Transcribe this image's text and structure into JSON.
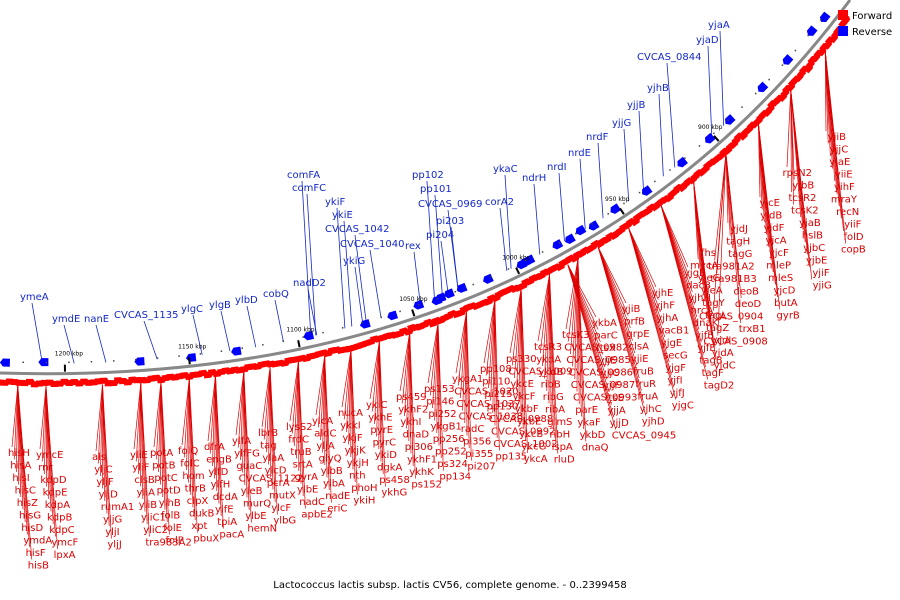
{
  "caption": "Lactococcus lactis subsp. lactis CV56, complete genome. - 0..2399458",
  "legend": [
    {
      "label": "Forward",
      "color": "#ff0000"
    },
    {
      "label": "Reverse",
      "color": "#0000ff"
    }
  ],
  "colors": {
    "forward": "#ff0000",
    "reverse": "#0000ff",
    "label_forward": "#dd0000",
    "label_reverse": "#1428c8",
    "axis": "#888888"
  },
  "tick_labels": [
    "1200 kbp",
    "1150 kbp",
    "1100 kbp",
    "1050 kbp",
    "1000 kbp",
    "950 kbp",
    "900 kbp"
  ],
  "reverse_labels": [
    "ymeA",
    "ymdE",
    "nanE",
    "CVCAS_1135",
    "ylgC",
    "ylgB",
    "ylbD",
    "cobQ",
    "nadD2",
    "ykiF",
    "comFC",
    "comFA",
    "ykiE",
    "CVCAS_1042",
    "CVCAS_1040",
    "ykiG",
    "rex",
    "pi204",
    "pi203",
    "CVCAS_0969",
    "pp101",
    "pp102",
    "corA2",
    "ndrH",
    "ykaC",
    "nrdI",
    "nrdE",
    "nrdF",
    "yjjG",
    "yjjB",
    "yjhB",
    "CVCAS_0844",
    "yjaD",
    "yjaA"
  ],
  "forward_labels": [
    "hisH",
    "hisA",
    "hisI",
    "hisC",
    "hisZ",
    "hisG",
    "hisD",
    "ymdA",
    "hisF",
    "hisB",
    "ymdC",
    "ymcE",
    "rnr",
    "kdpD",
    "kdpE",
    "kdpA",
    "kdpB",
    "kdpC",
    "ymcF",
    "lpxA",
    "als",
    "yljC",
    "yljF",
    "yljD",
    "rumA1",
    "yljG",
    "yljI",
    "yljJ",
    "yliE",
    "yliF",
    "clsB",
    "yliA",
    "yliB",
    "yliC1",
    "yliC2",
    "tra983A2",
    "potA",
    "potB",
    "potC",
    "potD",
    "ylhB",
    "folB",
    "folE",
    "folP",
    "folQ",
    "folC",
    "hom",
    "thrB",
    "clpX",
    "dukB",
    "xpt",
    "pbuX",
    "dfrA",
    "engB",
    "ylfD",
    "ylfH",
    "dcdA",
    "ylfE",
    "tpiA",
    "pacA",
    "ylfA",
    "ylfFG",
    "guaC",
    "CVCAS_1122",
    "yleB",
    "murQ",
    "ylbE",
    "hemN",
    "lbrB",
    "tag",
    "ylaA",
    "ylcD",
    "pcrA",
    "mutX",
    "ylcF",
    "ylbG",
    "lysS2",
    "frdC",
    "truB",
    "srtA",
    "gyrA",
    "ylbE",
    "nadC",
    "apbE2",
    "ylcA",
    "aldC",
    "yljA",
    "glyQ",
    "ylbB",
    "ylbA",
    "nadE",
    "eriC",
    "nucA",
    "ykkI",
    "ykjF",
    "ykjK",
    "ykjH",
    "nth",
    "phoH",
    "ykiH",
    "ykiC",
    "ykhE",
    "pyrE",
    "pyrC",
    "ykiD",
    "dgkA",
    "ps458",
    "ykhG",
    "ps459",
    "ykhF2",
    "ykhI",
    "dnaD",
    "pi306",
    "ykhF1",
    "ykhK",
    "ps152",
    "ps153",
    "pi146",
    "pi252",
    "ykgB1",
    "pp256",
    "pp252",
    "ps324",
    "pp134",
    "ykgA1",
    "CVCAS_1020",
    "CVCAS_1037",
    "CVCAS_1038",
    "radC",
    "pi356",
    "pi355",
    "pi207",
    "pp108",
    "pi110",
    "pi215",
    "pp130",
    "CVCAS_0988",
    "CVCAS_0992",
    "CVCAS_1002",
    "pp135",
    "ps330",
    "CVCAS_1009",
    "ykcE",
    "ykcF",
    "ykbF",
    "ykbE",
    "ykcB",
    "ykcG",
    "ykcA",
    "tcsR3",
    "ykdA",
    "ykdB",
    "ribB",
    "ribG",
    "ribA",
    "glmS",
    "ribH",
    "lspA",
    "rluD",
    "tcsK3",
    "CVCAS_0982",
    "CVCAS_0985",
    "CVCAS_0986",
    "CVCAS_0987",
    "CVCAS_0993",
    "parE",
    "ykaF",
    "ykbD",
    "dnaQ",
    "ykbA",
    "parC",
    "ftsX",
    "yjjE",
    "yjjC",
    "yjjF",
    "ftsE",
    "yjjA",
    "yjjD",
    "CVCAS_0945",
    "yjiB",
    "prfB",
    "grpE",
    "clsA",
    "yjiE",
    "fruB",
    "fruR",
    "fruA",
    "yjhC",
    "yjhD",
    "yjhE",
    "yjhF",
    "yjhA",
    "vacB1",
    "yjgE",
    "secG",
    "yjgF",
    "yjfI",
    "yjfJ",
    "yjgC",
    "yjgB",
    "dacB",
    "yjhH",
    "hrcA",
    "dnaK",
    "yjfB",
    "yjfE",
    "tagB",
    "tagF",
    "tagD2",
    "fhs",
    "mycA",
    "yjeG",
    "yjeA",
    "tagY",
    "tagL",
    "tagZ",
    "yjdI",
    "yjdA",
    "yjdC",
    "yjdJ",
    "tagH",
    "tagG",
    "tra981A2",
    "tra981B3",
    "deoB",
    "deoD",
    "CVCAS_0904",
    "trxB1",
    "CVCAS_0908",
    "yjcE",
    "yjdB",
    "yjdF",
    "yjcA",
    "yjcF",
    "mleP",
    "mleS",
    "yjcD",
    "butA",
    "gyrB",
    "rpsN2",
    "yjbB",
    "tcsR2",
    "tcsK2",
    "yjaB",
    "hslB",
    "yjbC",
    "yjbE",
    "yjiF",
    "yjiG",
    "yjiB",
    "yjjC",
    "yjaE",
    "yiiE",
    "yihF",
    "mraY",
    "recN",
    "yiiF",
    "folD",
    "copB"
  ]
}
